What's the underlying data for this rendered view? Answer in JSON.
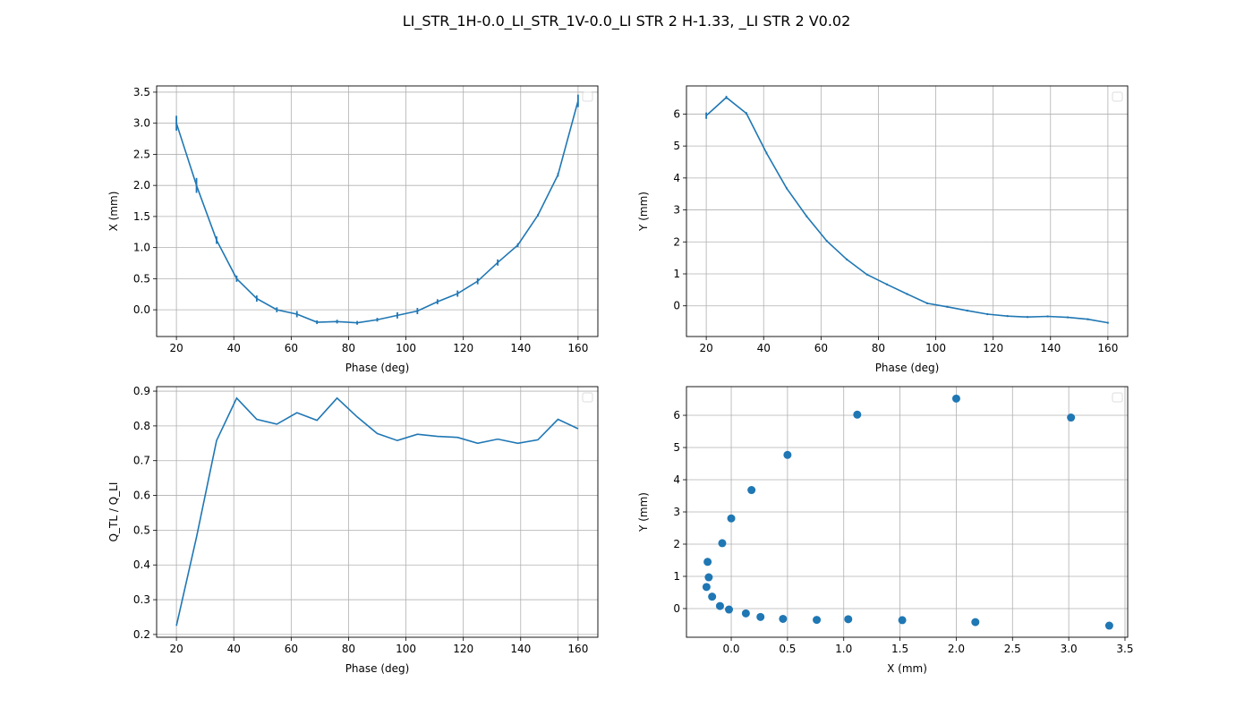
{
  "title": "LI_STR_1H-0.0_LI_STR_1V-0.0_LI STR 2 H-1.33, _LI STR 2 V0.02",
  "colors": {
    "series": "#1f77b4",
    "grid": "#b0b0b0"
  },
  "chart_data": [
    {
      "type": "line",
      "xlabel": "Phase (deg)",
      "ylabel": "X (mm)",
      "xlim": [
        13.1,
        166.9
      ],
      "ylim": [
        -0.43,
        3.6
      ],
      "xticks": [
        20,
        40,
        60,
        80,
        100,
        120,
        140,
        160
      ],
      "yticks": [
        0.0,
        0.5,
        1.0,
        1.5,
        2.0,
        2.5,
        3.0,
        3.5
      ],
      "ydec": 1,
      "grid": true,
      "legend": "top-right (empty)",
      "x": [
        20,
        27,
        34,
        41,
        48,
        55,
        62,
        69,
        76,
        83,
        90,
        97,
        104,
        111,
        118,
        125,
        132,
        139,
        146,
        153,
        160
      ],
      "y": [
        3.0,
        2.0,
        1.12,
        0.5,
        0.18,
        0.0,
        -0.07,
        -0.2,
        -0.19,
        -0.21,
        -0.16,
        -0.09,
        -0.02,
        0.13,
        0.26,
        0.46,
        0.76,
        1.04,
        1.52,
        2.17,
        3.36
      ],
      "yerr": [
        0.12,
        0.12,
        0.06,
        0.05,
        0.05,
        0.04,
        0.05,
        0.03,
        0.03,
        0.03,
        0.03,
        0.05,
        0.05,
        0.04,
        0.05,
        0.05,
        0.05,
        0.03,
        0.02,
        0.03,
        0.1
      ]
    },
    {
      "type": "line",
      "xlabel": "Phase (deg)",
      "ylabel": "Y (mm)",
      "xlim": [
        13.1,
        166.9
      ],
      "ylim": [
        -0.96,
        6.88
      ],
      "xticks": [
        20,
        40,
        60,
        80,
        100,
        120,
        140,
        160
      ],
      "yticks": [
        0,
        1,
        2,
        3,
        4,
        5,
        6
      ],
      "ydec": 0,
      "grid": true,
      "legend": "top-right (empty)",
      "x": [
        20,
        27,
        34,
        41,
        48,
        55,
        62,
        69,
        76,
        83,
        90,
        97,
        104,
        111,
        118,
        125,
        132,
        139,
        146,
        153,
        160
      ],
      "y": [
        5.95,
        6.52,
        6.02,
        4.78,
        3.68,
        2.8,
        2.03,
        1.45,
        0.98,
        0.67,
        0.37,
        0.08,
        -0.03,
        -0.15,
        -0.26,
        -0.32,
        -0.35,
        -0.33,
        -0.36,
        -0.42,
        -0.53
      ],
      "yerr": [
        0.1,
        0.05,
        0.04,
        0.04,
        0.03,
        0.03,
        0.03,
        0.03,
        0.03,
        0.03,
        0.03,
        0.03,
        0.03,
        0.03,
        0.03,
        0.03,
        0.03,
        0.03,
        0.03,
        0.03,
        0.03
      ]
    },
    {
      "type": "line",
      "xlabel": "Phase (deg)",
      "ylabel": "Q_TL / Q_LI",
      "xlim": [
        13.1,
        166.9
      ],
      "ylim": [
        0.192,
        0.913
      ],
      "xticks": [
        20,
        40,
        60,
        80,
        100,
        120,
        140,
        160
      ],
      "yticks": [
        0.2,
        0.3,
        0.4,
        0.5,
        0.6,
        0.7,
        0.8,
        0.9
      ],
      "ydec": 1,
      "grid": true,
      "legend": "top-right (empty)",
      "x": [
        20,
        27,
        34,
        41,
        48,
        55,
        62,
        69,
        76,
        83,
        90,
        97,
        104,
        111,
        118,
        125,
        132,
        139,
        146,
        153,
        160
      ],
      "y": [
        0.225,
        0.48,
        0.758,
        0.88,
        0.819,
        0.805,
        0.838,
        0.816,
        0.88,
        0.826,
        0.778,
        0.758,
        0.776,
        0.77,
        0.767,
        0.75,
        0.762,
        0.75,
        0.76,
        0.819,
        0.792
      ]
    },
    {
      "type": "scatter",
      "xlabel": "X (mm)",
      "ylabel": "Y (mm)",
      "xlim": [
        -0.398,
        3.524
      ],
      "ylim": [
        -0.89,
        6.89
      ],
      "xticks": [
        0.0,
        0.5,
        1.0,
        1.5,
        2.0,
        2.5,
        3.0,
        3.5
      ],
      "xdec": 1,
      "yticks": [
        0,
        1,
        2,
        3,
        4,
        5,
        6
      ],
      "ydec": 0,
      "grid": true,
      "legend": "top-right (empty)",
      "x": [
        3.02,
        2.0,
        1.12,
        0.5,
        0.18,
        0.0,
        -0.08,
        -0.21,
        -0.2,
        -0.22,
        -0.17,
        -0.1,
        -0.02,
        0.13,
        0.26,
        0.46,
        0.76,
        1.04,
        1.52,
        2.17,
        3.36
      ],
      "y": [
        5.93,
        6.52,
        6.02,
        4.77,
        3.68,
        2.8,
        2.03,
        1.45,
        0.97,
        0.67,
        0.37,
        0.08,
        -0.03,
        -0.15,
        -0.26,
        -0.32,
        -0.35,
        -0.33,
        -0.36,
        -0.42,
        -0.53
      ]
    }
  ]
}
